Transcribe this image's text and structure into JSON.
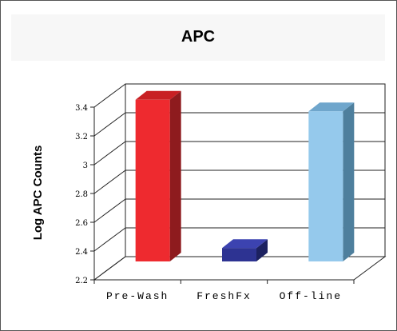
{
  "chart_data": {
    "type": "bar",
    "title": "APC",
    "xlabel": "",
    "ylabel": "Log APC Counts",
    "categories": [
      "Pre-Wash",
      "FreshFx",
      "Off-line"
    ],
    "values": [
      3.39,
      2.36,
      3.31
    ],
    "ylim": [
      2.2,
      3.4
    ],
    "yticks": [
      "2.2",
      "2.4",
      "2.6",
      "2.8",
      "3",
      "3.2",
      "3.4"
    ],
    "grid": true,
    "legend": "none",
    "colors": [
      {
        "front": "#ee2a2f",
        "side": "#8e1b1e",
        "top": "#c82024"
      },
      {
        "front": "#2d3392",
        "side": "#1c2160",
        "top": "#3c43b0"
      },
      {
        "front": "#95c9ec",
        "side": "#4e7f9d",
        "top": "#6fa6cc"
      }
    ]
  }
}
